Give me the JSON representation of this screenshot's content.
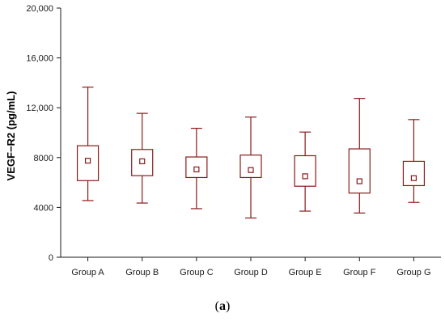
{
  "chart_data": {
    "type": "box",
    "title": "",
    "xlabel": "",
    "ylabel": "VEGF−R2 (pg/mL)",
    "ylim": [
      0,
      20000
    ],
    "yticks": [
      0,
      4000,
      8000,
      12000,
      16000,
      20000
    ],
    "ytick_labels": [
      "0",
      "4000",
      "8000",
      "12,000",
      "16,000",
      "20,000"
    ],
    "grid": false,
    "box_color": "#8b1a1a",
    "categories": [
      "Group A",
      "Group B",
      "Group C",
      "Group D",
      "Group E",
      "Group F",
      "Group G"
    ],
    "boxes": [
      {
        "whisker_min": 4550,
        "q1": 6150,
        "q3": 8950,
        "whisker_max": 13650,
        "mean": 7750
      },
      {
        "whisker_min": 4350,
        "q1": 6550,
        "q3": 8650,
        "whisker_max": 11550,
        "mean": 7700
      },
      {
        "whisker_min": 3900,
        "q1": 6400,
        "q3": 8050,
        "whisker_max": 10350,
        "mean": 7050
      },
      {
        "whisker_min": 3150,
        "q1": 6400,
        "q3": 8200,
        "whisker_max": 11250,
        "mean": 7000
      },
      {
        "whisker_min": 3700,
        "q1": 5700,
        "q3": 8150,
        "whisker_max": 10050,
        "mean": 6500
      },
      {
        "whisker_min": 3550,
        "q1": 5150,
        "q3": 8700,
        "whisker_max": 12750,
        "mean": 6100
      },
      {
        "whisker_min": 4400,
        "q1": 5750,
        "q3": 7700,
        "whisker_max": 11050,
        "mean": 6350
      }
    ]
  },
  "panel_label": "a"
}
